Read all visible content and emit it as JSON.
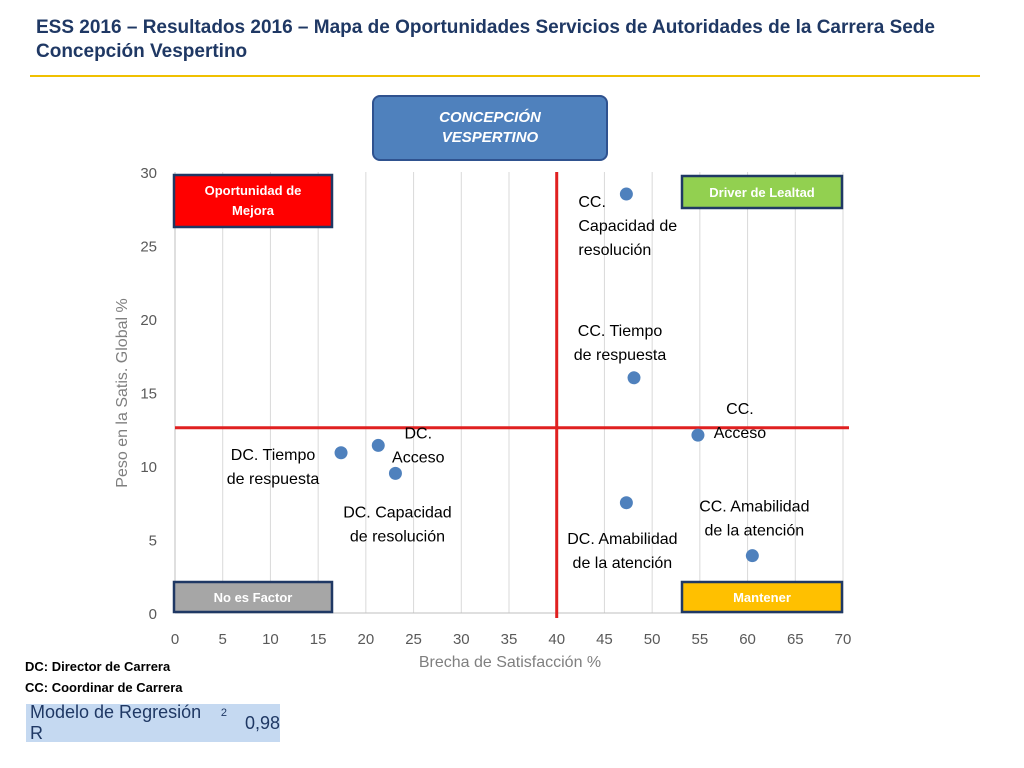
{
  "title": "ESS 2016 – Resultados 2016 – Mapa de Oportunidades Servicios de Autoridades de la Carrera Sede Concepción Vespertino",
  "badge": "CONCEPCIÓN VESPERTINO",
  "chart_data": {
    "type": "scatter",
    "xlabel": "Brecha de Satisfacción %",
    "ylabel": "Peso en la Satis. Global %",
    "xlim": [
      0,
      70
    ],
    "ylim": [
      0,
      30
    ],
    "x_ticks": [
      0,
      5,
      10,
      15,
      20,
      25,
      30,
      35,
      40,
      45,
      50,
      55,
      60,
      65,
      70
    ],
    "y_ticks": [
      0,
      5,
      10,
      15,
      20,
      25,
      30
    ],
    "grid": "vertical",
    "threshold_x": 40,
    "threshold_y": 12.6,
    "points": [
      {
        "label": "CC. Capacidad de resolución",
        "x": 47.3,
        "y": 28.5
      },
      {
        "label": "CC. Tiempo de respuesta",
        "x": 48.1,
        "y": 16.0
      },
      {
        "label": "CC. Acceso",
        "x": 54.8,
        "y": 12.1
      },
      {
        "label": "CC. Amabilidad de la atención",
        "x": 60.5,
        "y": 3.9
      },
      {
        "label": "DC. Amabilidad de la atención",
        "x": 47.3,
        "y": 7.5
      },
      {
        "label": "DC. Acceso",
        "x": 21.3,
        "y": 11.4
      },
      {
        "label": "DC. Tiempo de respuesta",
        "x": 17.4,
        "y": 10.9
      },
      {
        "label": "DC. Capacidad de resolución",
        "x": 23.1,
        "y": 9.5
      }
    ],
    "quadrants": {
      "top_left": "Oportunidad de Mejora",
      "top_right": "Driver de Lealtad",
      "bottom_left": "No es Factor",
      "bottom_right": "Mantener"
    },
    "colors": {
      "point": "#4f81bd",
      "threshold": "#e02020",
      "top_left": "#ff0000",
      "top_right": "#92d050",
      "bottom_left": "#a6a6a6",
      "bottom_right": "#ffc000"
    }
  },
  "legend": {
    "dc": "DC: Director de Carrera",
    "cc": "CC: Coordinar de Carrera"
  },
  "regression": {
    "label": "Modelo de Regresión R",
    "superscript": "2",
    "value": "0,98"
  }
}
